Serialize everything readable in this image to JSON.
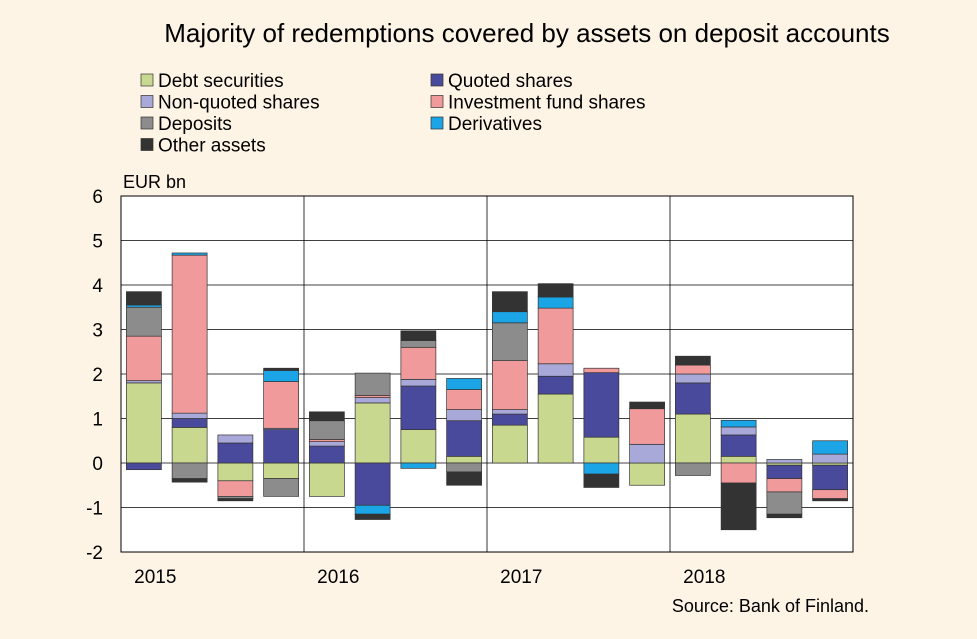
{
  "chart_data": {
    "type": "bar",
    "stacked": true,
    "title": "Majority of redemptions covered by assets on deposit accounts",
    "unit_label": "EUR bn",
    "source": "Source: Bank of Finland.",
    "ylim": [
      -2,
      6
    ],
    "yticks": [
      6,
      5,
      4,
      3,
      2,
      1,
      0,
      -1,
      -2
    ],
    "year_labels": [
      "2015",
      "2016",
      "2017",
      "2018"
    ],
    "quarters": [
      "2015Q1",
      "2015Q2",
      "2015Q3",
      "2015Q4",
      "2016Q1",
      "2016Q2",
      "2016Q3",
      "2016Q4",
      "2017Q1",
      "2017Q2",
      "2017Q3",
      "2017Q4",
      "2018Q1",
      "2018Q2",
      "2018Q3",
      "2018Q4"
    ],
    "legend_position": "top-left",
    "grid": true,
    "series": [
      {
        "name": "Debt securities",
        "color": "#c8d88f",
        "values": [
          1.8,
          0.8,
          -0.4,
          -0.35,
          -0.75,
          1.35,
          0.75,
          0.15,
          0.85,
          1.55,
          0.58,
          -0.5,
          1.1,
          0.15,
          -0.05,
          -0.05
        ]
      },
      {
        "name": "Quoted shares",
        "color": "#4a4a9c",
        "values": [
          -0.15,
          0.2,
          0.45,
          0.75,
          0.38,
          -0.95,
          0.98,
          0.8,
          0.25,
          0.4,
          1.45,
          0.0,
          0.7,
          0.48,
          -0.3,
          -0.55
        ]
      },
      {
        "name": "Non-quoted shares",
        "color": "#a9a9d9",
        "values": [
          0.05,
          0.12,
          0.18,
          0.03,
          0.1,
          0.12,
          0.15,
          0.25,
          0.1,
          0.28,
          0.0,
          0.42,
          0.2,
          0.18,
          0.08,
          0.2
        ]
      },
      {
        "name": "Investment fund shares",
        "color": "#f09a9c",
        "values": [
          1.0,
          3.55,
          -0.35,
          1.05,
          0.05,
          0.05,
          0.72,
          0.45,
          1.1,
          1.25,
          0.1,
          0.8,
          0.2,
          -0.45,
          -0.3,
          -0.2
        ]
      },
      {
        "name": "Deposits",
        "color": "#8c8c8c",
        "values": [
          0.65,
          -0.35,
          -0.05,
          -0.4,
          0.42,
          0.5,
          0.15,
          -0.2,
          0.85,
          0.0,
          0.0,
          0.0,
          -0.28,
          0.0,
          -0.5,
          0.0
        ]
      },
      {
        "name": "Derivatives",
        "color": "#1ba5e6",
        "values": [
          0.05,
          0.05,
          0.0,
          0.25,
          0.0,
          -0.2,
          -0.12,
          0.25,
          0.25,
          0.25,
          -0.25,
          0.0,
          0.0,
          0.15,
          0.0,
          0.3
        ]
      },
      {
        "name": "Other assets",
        "color": "#333333",
        "values": [
          0.3,
          -0.08,
          -0.05,
          0.05,
          0.2,
          -0.12,
          0.22,
          -0.3,
          0.45,
          0.3,
          -0.3,
          0.15,
          0.2,
          -1.05,
          -0.08,
          -0.05
        ]
      }
    ]
  }
}
